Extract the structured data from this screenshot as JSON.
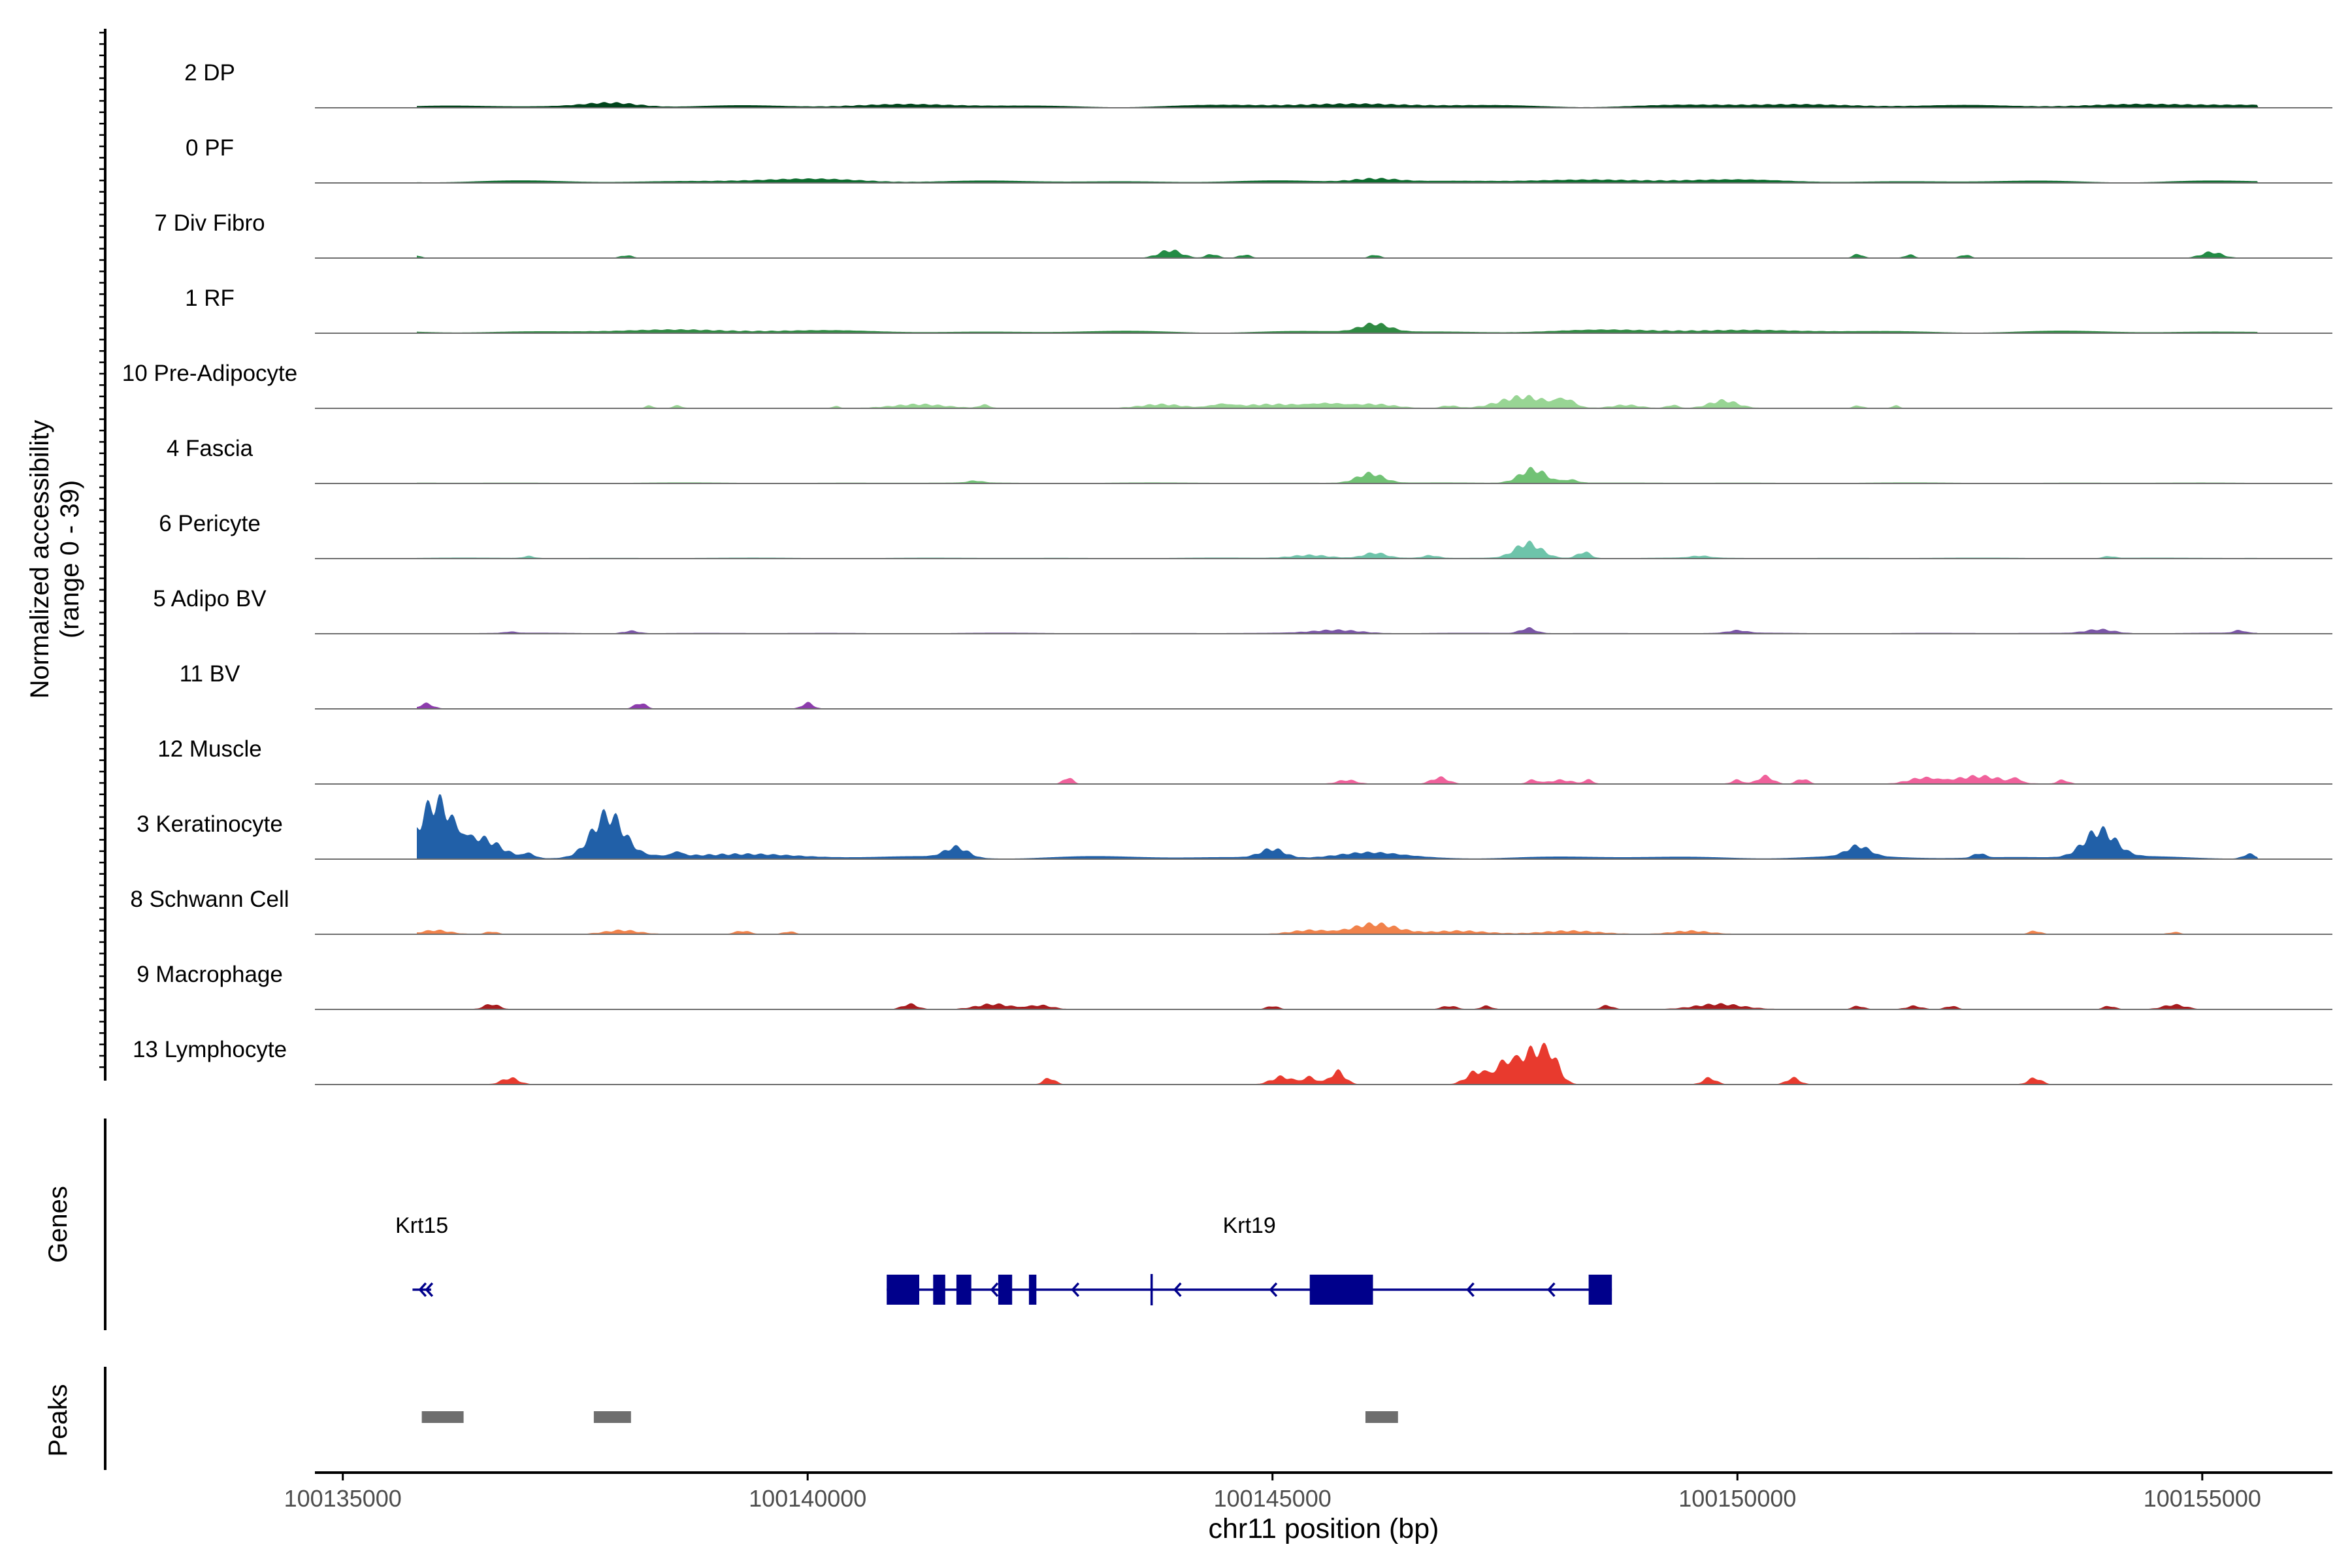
{
  "chart_data": {
    "type": "area",
    "title": "",
    "chromosome": "chr11",
    "xlabel": "chr11 position (bp)",
    "xlim": [
      100134700,
      100156400
    ],
    "xticks": [
      100135000,
      100140000,
      100145000,
      100150000,
      100155000
    ],
    "xtick_labels": [
      "100135000",
      "100140000",
      "100145000",
      "100150000",
      "100155000"
    ],
    "coverage_ylabel_line1": "Normalized accessibility",
    "coverage_ylabel_line2": "(range 0 - 39)",
    "ylim": [
      0,
      39
    ],
    "track_start": 100135800,
    "track_end": 100155600,
    "tracks": [
      {
        "label": "2 DP",
        "color": "#00441b",
        "baseline": 0.3,
        "peaks": [
          [
            100137900,
            0.6,
            280
          ],
          [
            100141000,
            0.3,
            600
          ],
          [
            100145800,
            0.4,
            800
          ],
          [
            100150500,
            0.3,
            900
          ],
          [
            100154500,
            0.3,
            900
          ]
        ]
      },
      {
        "label": "0 PF",
        "color": "#0a6b2c",
        "baseline": 0.3,
        "peaks": [
          [
            100146100,
            0.6,
            250
          ],
          [
            100140000,
            0.3,
            700
          ],
          [
            100149000,
            0.3,
            900
          ]
        ]
      },
      {
        "label": "7 Div Fibro",
        "color": "#238b45",
        "baseline": 0,
        "peaks": [
          [
            100135800,
            0.4,
            40
          ],
          [
            100138050,
            0.4,
            60
          ],
          [
            100143900,
            1.2,
            120
          ],
          [
            100144350,
            0.6,
            60
          ],
          [
            100144700,
            0.5,
            60
          ],
          [
            100146100,
            0.5,
            50
          ],
          [
            100151300,
            0.6,
            50
          ],
          [
            100151850,
            0.5,
            50
          ],
          [
            100152450,
            0.5,
            50
          ],
          [
            100155100,
            0.9,
            110
          ]
        ]
      },
      {
        "label": "1 RF",
        "color": "#2f8a42",
        "baseline": 0.3,
        "peaks": [
          [
            100146100,
            1.3,
            160
          ],
          [
            100139000,
            0.3,
            800
          ],
          [
            100149500,
            0.3,
            900
          ]
        ]
      },
      {
        "label": "10 Pre-Adipocyte",
        "color": "#98d594",
        "baseline": 0,
        "peaks": [
          [
            100138300,
            0.4,
            40
          ],
          [
            100138600,
            0.4,
            50
          ],
          [
            100140300,
            0.3,
            40
          ],
          [
            100141200,
            0.6,
            280
          ],
          [
            100141900,
            0.5,
            60
          ],
          [
            100143800,
            0.6,
            220
          ],
          [
            100144450,
            0.5,
            120
          ],
          [
            100145000,
            0.6,
            350
          ],
          [
            100145600,
            0.6,
            200
          ],
          [
            100146100,
            0.6,
            220
          ],
          [
            100146900,
            0.4,
            80
          ],
          [
            100147700,
            1.8,
            250
          ],
          [
            100148150,
            1.2,
            100
          ],
          [
            100148800,
            0.5,
            150
          ],
          [
            100149300,
            0.5,
            60
          ],
          [
            100149850,
            1.2,
            150
          ],
          [
            100151300,
            0.4,
            50
          ],
          [
            100151700,
            0.4,
            40
          ]
        ]
      },
      {
        "label": "4 Fascia",
        "color": "#71c275",
        "baseline": 0.1,
        "peaks": [
          [
            100146050,
            1.5,
            140
          ],
          [
            100147800,
            2.2,
            140
          ],
          [
            100148200,
            0.5,
            80
          ],
          [
            100141800,
            0.3,
            80
          ]
        ]
      },
      {
        "label": "6 Pericyte",
        "color": "#6ec4aa",
        "baseline": 0.1,
        "peaks": [
          [
            100146100,
            0.8,
            120
          ],
          [
            100145400,
            0.5,
            200
          ],
          [
            100147750,
            2.3,
            140
          ],
          [
            100148350,
            1.0,
            70
          ],
          [
            100146700,
            0.4,
            80
          ],
          [
            100149600,
            0.3,
            100
          ],
          [
            100137000,
            0.3,
            60
          ],
          [
            100154000,
            0.3,
            60
          ]
        ]
      },
      {
        "label": "5 Adipo BV",
        "color": "#7a55a6",
        "baseline": 0.1,
        "peaks": [
          [
            100138100,
            0.4,
            80
          ],
          [
            100145700,
            0.5,
            250
          ],
          [
            100147750,
            0.8,
            80
          ],
          [
            100150000,
            0.4,
            100
          ],
          [
            100153900,
            0.6,
            150
          ],
          [
            100155400,
            0.4,
            60
          ],
          [
            100136800,
            0.2,
            60
          ]
        ]
      },
      {
        "label": "11 BV",
        "color": "#8c3cac",
        "baseline": 0,
        "peaks": [
          [
            100135900,
            0.8,
            70
          ],
          [
            100138200,
            0.9,
            60
          ],
          [
            100140000,
            0.9,
            60
          ]
        ]
      },
      {
        "label": "12 Muscle",
        "color": "#f0619b",
        "baseline": 0,
        "peaks": [
          [
            100142800,
            1.0,
            50
          ],
          [
            100145800,
            0.6,
            100
          ],
          [
            100146800,
            1.0,
            90
          ],
          [
            100147800,
            0.6,
            60
          ],
          [
            100148100,
            0.6,
            120
          ],
          [
            100148400,
            0.6,
            50
          ],
          [
            100150000,
            0.6,
            60
          ],
          [
            100150300,
            1.2,
            80
          ],
          [
            100150700,
            0.8,
            60
          ],
          [
            100152000,
            0.9,
            160
          ],
          [
            100152600,
            1.2,
            250
          ],
          [
            100153000,
            0.6,
            50
          ],
          [
            100153500,
            0.6,
            60
          ]
        ]
      },
      {
        "label": "3 Keratinocyte",
        "color": "#2160a8",
        "baseline": 0.4,
        "peaks": [
          [
            100136000,
            8.5,
            180
          ],
          [
            100136500,
            2.8,
            200
          ],
          [
            100137000,
            0.7,
            70
          ],
          [
            100137850,
            6.5,
            170
          ],
          [
            100138600,
            0.6,
            60
          ],
          [
            100139200,
            0.6,
            500
          ],
          [
            100141600,
            1.6,
            120
          ],
          [
            100145000,
            1.4,
            130
          ],
          [
            100146000,
            0.6,
            300
          ],
          [
            100151300,
            1.6,
            120
          ],
          [
            100152600,
            0.7,
            60
          ],
          [
            100153900,
            4.2,
            170
          ],
          [
            100155500,
            0.7,
            60
          ]
        ]
      },
      {
        "label": "8 Schwann Cell",
        "color": "#f1824b",
        "baseline": 0,
        "peaks": [
          [
            100136000,
            0.6,
            150
          ],
          [
            100136600,
            0.4,
            60
          ],
          [
            100138000,
            0.6,
            180
          ],
          [
            100139300,
            0.5,
            80
          ],
          [
            100139800,
            0.4,
            60
          ],
          [
            100145400,
            0.6,
            200
          ],
          [
            100146100,
            1.6,
            240
          ],
          [
            100147000,
            0.5,
            300
          ],
          [
            100148200,
            0.5,
            300
          ],
          [
            100149500,
            0.5,
            200
          ],
          [
            100153200,
            0.5,
            60
          ],
          [
            100154700,
            0.3,
            60
          ]
        ]
      },
      {
        "label": "9 Macrophage",
        "color": "#a71c1f",
        "baseline": 0,
        "peaks": [
          [
            100136600,
            0.8,
            80
          ],
          [
            100141100,
            0.8,
            80
          ],
          [
            100142000,
            0.8,
            180
          ],
          [
            100142500,
            0.6,
            130
          ],
          [
            100145000,
            0.5,
            60
          ],
          [
            100146900,
            0.5,
            80
          ],
          [
            100147300,
            0.5,
            60
          ],
          [
            100148600,
            0.6,
            60
          ],
          [
            100149800,
            0.8,
            250
          ],
          [
            100151300,
            0.5,
            60
          ],
          [
            100151900,
            0.5,
            80
          ],
          [
            100152300,
            0.5,
            60
          ],
          [
            100154000,
            0.5,
            60
          ],
          [
            100154700,
            0.7,
            120
          ]
        ]
      },
      {
        "label": "13 Lymphocyte",
        "color": "#e83a2e",
        "baseline": 0,
        "peaks": [
          [
            100136800,
            1.0,
            90
          ],
          [
            100142600,
            1.0,
            60
          ],
          [
            100145100,
            1.2,
            110
          ],
          [
            100145400,
            1.1,
            80
          ],
          [
            100145700,
            2.0,
            80
          ],
          [
            100147200,
            2.0,
            110
          ],
          [
            100147500,
            3.0,
            110
          ],
          [
            100147800,
            5.0,
            150
          ],
          [
            100148000,
            3.0,
            90
          ],
          [
            100149700,
            1.0,
            70
          ],
          [
            100150600,
            1.0,
            70
          ],
          [
            100153200,
            1.0,
            70
          ]
        ]
      }
    ],
    "genes_label": "Genes",
    "genes": [
      {
        "name": "Krt15",
        "strand": "-",
        "start": 100135750,
        "end": 100135950,
        "exons": [
          [
            100135800,
            100135860
          ],
          [
            100135880,
            100135940
          ]
        ]
      },
      {
        "name": "Krt19",
        "strand": "-",
        "start": 100140850,
        "end": 100148650,
        "exons": [
          [
            100140850,
            100141200
          ],
          [
            100141350,
            100141480
          ],
          [
            100141600,
            100141760
          ],
          [
            100142050,
            100142200
          ],
          [
            100142380,
            100142460
          ],
          [
            100145400,
            100146080
          ],
          [
            100148400,
            100148650
          ]
        ]
      }
    ],
    "peaks_label": "Peaks",
    "peak_regions": [
      [
        100135850,
        100136300
      ],
      [
        100137700,
        100138100
      ],
      [
        100146000,
        100146350
      ]
    ]
  }
}
